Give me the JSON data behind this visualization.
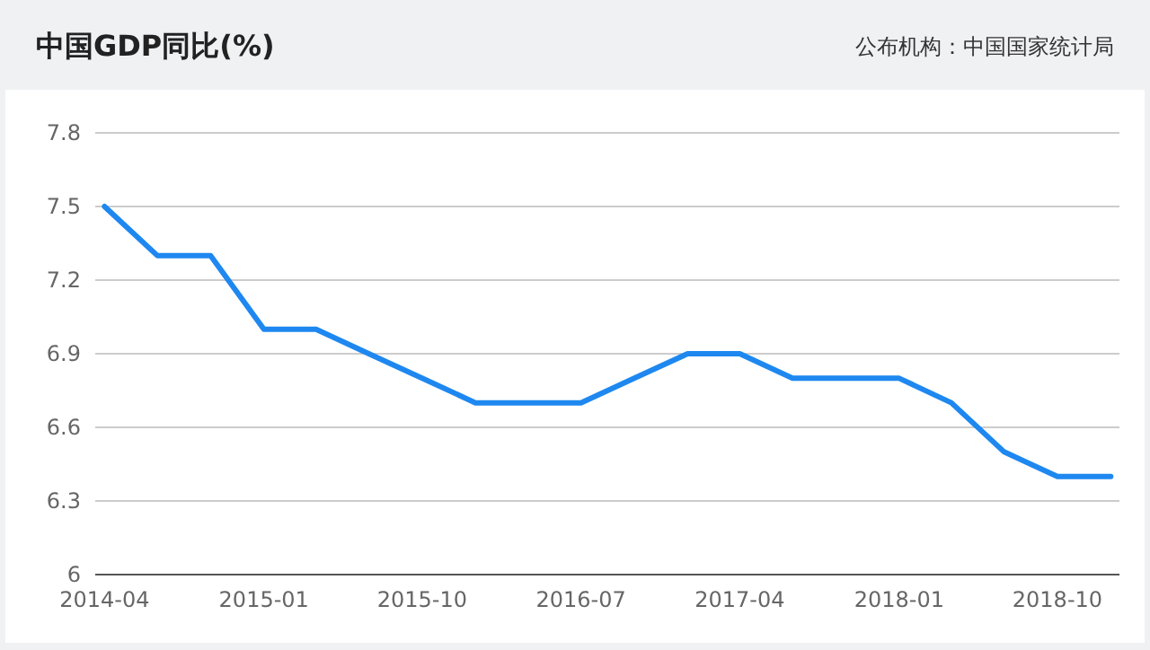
{
  "chart_data": {
    "type": "line",
    "title": "中国GDP同比(%)",
    "annotations": [
      "公布机构：中国国家统计局"
    ],
    "x": [
      "2014-04",
      "2014-07",
      "2014-10",
      "2015-01",
      "2015-04",
      "2015-07",
      "2015-10",
      "2016-01",
      "2016-04",
      "2016-07",
      "2016-10",
      "2017-01",
      "2017-04",
      "2017-07",
      "2017-10",
      "2018-01",
      "2018-04",
      "2018-07",
      "2018-10",
      "2019-01"
    ],
    "series": [
      {
        "color": "#1e88f0",
        "values": [
          7.5,
          7.3,
          7.3,
          7.0,
          7.0,
          6.9,
          6.8,
          6.7,
          6.7,
          6.7,
          6.8,
          6.9,
          6.9,
          6.8,
          6.8,
          6.8,
          6.7,
          6.5,
          6.4,
          6.4
        ]
      }
    ],
    "xlim": [
      "2014-03-16",
      "2019-01-16"
    ],
    "xticks": [
      {
        "value": "2014-04",
        "label": "2014-04"
      },
      {
        "value": "2015-01",
        "label": "2015-01"
      },
      {
        "value": "2015-10",
        "label": "2015-10"
      },
      {
        "value": "2016-07",
        "label": "2016-07"
      },
      {
        "value": "2017-04",
        "label": "2017-04"
      },
      {
        "value": "2018-01",
        "label": "2018-01"
      },
      {
        "value": "2018-10",
        "label": "2018-10"
      }
    ],
    "ylim": [
      6,
      7.8
    ],
    "yticks": [
      6,
      6.3,
      6.6,
      6.9,
      7.2,
      7.5,
      7.8
    ],
    "grid": "y",
    "marker": "none",
    "line_style": "solid"
  }
}
